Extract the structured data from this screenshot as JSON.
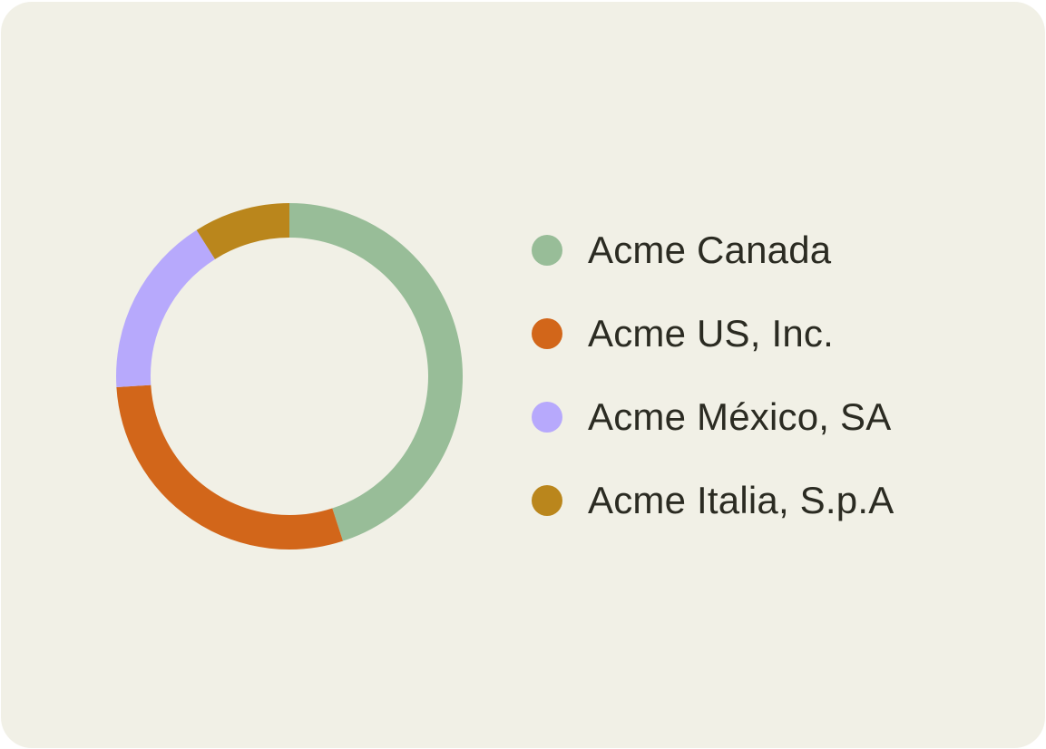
{
  "chart_data": {
    "type": "pie",
    "variant": "donut",
    "legend_position": "right",
    "series": [
      {
        "name": "Acme Canada",
        "value": 45,
        "color": "#98bd98"
      },
      {
        "name": "Acme US, Inc.",
        "value": 29,
        "color": "#d2661a"
      },
      {
        "name": "Acme México, SA",
        "value": 17,
        "color": "#b7a9fc"
      },
      {
        "name": "Acme Italia, S.p.A",
        "value": 9,
        "color": "#ba861c"
      }
    ]
  }
}
